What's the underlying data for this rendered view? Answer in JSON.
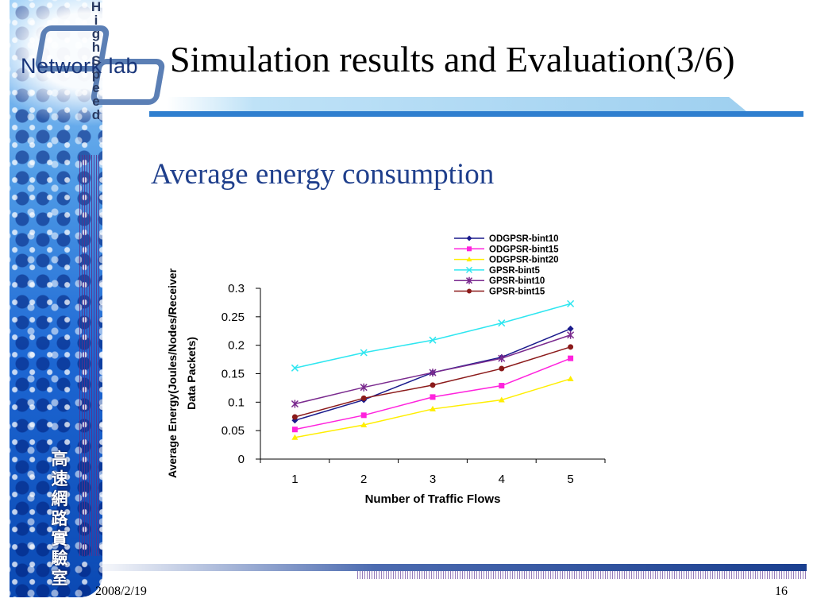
{
  "slide": {
    "title": "Simulation results and Evaluation(3/6)",
    "subtitle": "Average energy consumption",
    "date": "2008/2/19",
    "page": "16",
    "logo_text": "Network lab",
    "vertical_brand": [
      "H",
      "i",
      "g",
      "h",
      "S",
      "p",
      "e",
      "e",
      "d"
    ],
    "cjk_label": [
      "高",
      "速",
      "網",
      "路",
      "實",
      "驗",
      "室"
    ]
  },
  "chart_data": {
    "type": "line",
    "title": "",
    "xlabel": "Number of Traffic Flows",
    "ylabel_lines": [
      "Average Energy(Joules/Nodes/Receiver",
      "Data Packets)"
    ],
    "categories": [
      "1",
      "2",
      "3",
      "4",
      "5"
    ],
    "ylim": [
      0,
      0.3
    ],
    "yticks": [
      "0",
      "0.05",
      "0.1",
      "0.15",
      "0.2",
      "0.25",
      "0.3"
    ],
    "legend_position": "top-right",
    "grid": false,
    "series": [
      {
        "name": "ODGPSR-bint10",
        "color": "#1a1a8c",
        "marker": "diamond",
        "values": [
          0.068,
          0.104,
          0.152,
          0.179,
          0.229
        ]
      },
      {
        "name": "ODGPSR-bint15",
        "color": "#ff22dd",
        "marker": "square",
        "values": [
          0.052,
          0.077,
          0.109,
          0.129,
          0.177
        ]
      },
      {
        "name": "ODGPSR-bint20",
        "color": "#ffee00",
        "marker": "triangle",
        "values": [
          0.038,
          0.06,
          0.088,
          0.104,
          0.141
        ]
      },
      {
        "name": "GPSR-bint5",
        "color": "#2ee6f0",
        "marker": "x",
        "values": [
          0.16,
          0.187,
          0.209,
          0.239,
          0.273
        ]
      },
      {
        "name": "GPSR-bint10",
        "color": "#7a2a8e",
        "marker": "star",
        "values": [
          0.097,
          0.126,
          0.152,
          0.177,
          0.218
        ]
      },
      {
        "name": "GPSR-bint15",
        "color": "#8b1a1a",
        "marker": "circle",
        "values": [
          0.074,
          0.107,
          0.13,
          0.159,
          0.197
        ]
      }
    ]
  }
}
